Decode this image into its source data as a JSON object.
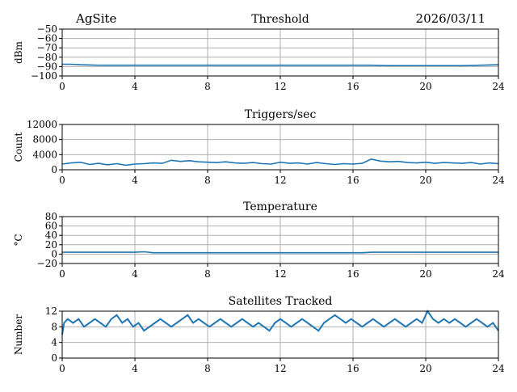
{
  "header": {
    "site": "AgSite",
    "date": "2026/03/11"
  },
  "colors": {
    "series": "#1f77b4",
    "grid": "#b0b0b0",
    "axis": "#000000"
  },
  "chart_data": [
    {
      "type": "line",
      "title": "Threshold",
      "ylabel": "dBm",
      "xlabel": "",
      "xlim": [
        0,
        24
      ],
      "ylim": [
        -100,
        -50
      ],
      "xticks": [
        0,
        4,
        8,
        12,
        16,
        20,
        24
      ],
      "yticks": [
        -100,
        -90,
        -80,
        -70,
        -60,
        -50
      ],
      "grid": true,
      "series": [
        {
          "x": [
            0,
            0.5,
            1,
            2,
            3,
            4,
            5,
            6,
            7,
            8,
            9,
            10,
            11,
            12,
            13,
            14,
            15,
            16,
            17,
            18,
            19,
            20,
            21,
            22,
            23,
            24
          ],
          "y": [
            -87.5,
            -87.5,
            -88,
            -88.5,
            -88.5,
            -88.5,
            -88.5,
            -88.5,
            -88.5,
            -88.5,
            -88.5,
            -88.5,
            -88.5,
            -88.5,
            -88.5,
            -88.5,
            -88.5,
            -88.5,
            -88.5,
            -89,
            -89,
            -89,
            -89,
            -89,
            -88.5,
            -88
          ]
        }
      ]
    },
    {
      "type": "line",
      "title": "Triggers/sec",
      "ylabel": "Count",
      "xlabel": "",
      "xlim": [
        0,
        24
      ],
      "ylim": [
        0,
        12000
      ],
      "xticks": [
        0,
        4,
        8,
        12,
        16,
        20,
        24
      ],
      "yticks": [
        0,
        4000,
        8000,
        12000
      ],
      "grid": true,
      "series": [
        {
          "x": [
            0,
            0.5,
            1,
            1.5,
            2,
            2.5,
            3,
            3.5,
            4,
            4.5,
            5,
            5.5,
            6,
            6.5,
            7,
            7.5,
            8,
            8.5,
            9,
            9.5,
            10,
            10.5,
            11,
            11.5,
            12,
            12.5,
            13,
            13.5,
            14,
            14.5,
            15,
            15.5,
            16,
            16.5,
            17,
            17.5,
            18,
            18.5,
            19,
            19.5,
            20,
            20.5,
            21,
            21.5,
            22,
            22.5,
            23,
            23.5,
            24
          ],
          "y": [
            1500,
            1800,
            2000,
            1400,
            1700,
            1300,
            1600,
            1200,
            1500,
            1600,
            1800,
            1700,
            2500,
            2200,
            2400,
            2100,
            2000,
            1900,
            2100,
            1800,
            1700,
            1900,
            1600,
            1500,
            2000,
            1700,
            1800,
            1500,
            1900,
            1600,
            1400,
            1600,
            1500,
            1700,
            2800,
            2300,
            2100,
            2200,
            1900,
            1800,
            2000,
            1700,
            1900,
            1800,
            1700,
            1900,
            1500,
            1800,
            1600
          ]
        }
      ]
    },
    {
      "type": "line",
      "title": "Temperature",
      "ylabel": "°C",
      "xlabel": "",
      "xlim": [
        0,
        24
      ],
      "ylim": [
        -20,
        80
      ],
      "xticks": [
        0,
        4,
        8,
        12,
        16,
        20,
        24
      ],
      "yticks": [
        -20,
        0,
        20,
        40,
        60,
        80
      ],
      "grid": true,
      "series": [
        {
          "x": [
            0,
            2,
            4,
            4.5,
            5,
            6,
            8,
            10,
            12,
            14,
            16,
            16.5,
            17,
            18,
            20,
            22,
            24
          ],
          "y": [
            4,
            4,
            4,
            5,
            3,
            3,
            3,
            3,
            3,
            3,
            3,
            3,
            4,
            4,
            4,
            4,
            4
          ]
        }
      ]
    },
    {
      "type": "line",
      "title": "Satellites Tracked",
      "ylabel": "Number",
      "xlabel": "",
      "xlim": [
        0,
        24
      ],
      "ylim": [
        0,
        12
      ],
      "xticks": [
        0,
        4,
        8,
        12,
        16,
        20,
        24
      ],
      "yticks": [
        0,
        4,
        8,
        12
      ],
      "grid": true,
      "series": [
        {
          "x": [
            0,
            0.1,
            0.3,
            0.6,
            0.9,
            1.2,
            1.5,
            1.8,
            2.1,
            2.4,
            2.7,
            3.0,
            3.3,
            3.6,
            3.9,
            4.2,
            4.5,
            4.8,
            5.1,
            5.4,
            5.7,
            6.0,
            6.3,
            6.6,
            6.9,
            7.2,
            7.5,
            7.8,
            8.1,
            8.4,
            8.7,
            9.0,
            9.3,
            9.6,
            9.9,
            10.2,
            10.5,
            10.8,
            11.1,
            11.4,
            11.7,
            12.0,
            12.3,
            12.6,
            12.9,
            13.2,
            13.5,
            13.8,
            14.1,
            14.4,
            14.7,
            15.0,
            15.3,
            15.6,
            15.9,
            16.2,
            16.5,
            16.8,
            17.1,
            17.4,
            17.7,
            18.0,
            18.3,
            18.6,
            18.9,
            19.2,
            19.5,
            19.8,
            20.1,
            20.4,
            20.7,
            21.0,
            21.3,
            21.6,
            21.9,
            22.2,
            22.5,
            22.8,
            23.1,
            23.4,
            23.7,
            24.0
          ],
          "y": [
            6,
            9,
            10,
            9,
            10,
            8,
            9,
            10,
            9,
            8,
            10,
            11,
            9,
            10,
            8,
            9,
            7,
            8,
            9,
            10,
            9,
            8,
            9,
            10,
            11,
            9,
            10,
            9,
            8,
            9,
            10,
            9,
            8,
            9,
            10,
            9,
            8,
            9,
            8,
            7,
            9,
            10,
            9,
            8,
            9,
            10,
            9,
            8,
            7,
            9,
            10,
            11,
            10,
            9,
            10,
            9,
            8,
            9,
            10,
            9,
            8,
            9,
            10,
            9,
            8,
            9,
            10,
            9,
            12,
            10,
            9,
            10,
            9,
            10,
            9,
            8,
            9,
            10,
            9,
            8,
            9,
            7
          ]
        }
      ]
    }
  ]
}
